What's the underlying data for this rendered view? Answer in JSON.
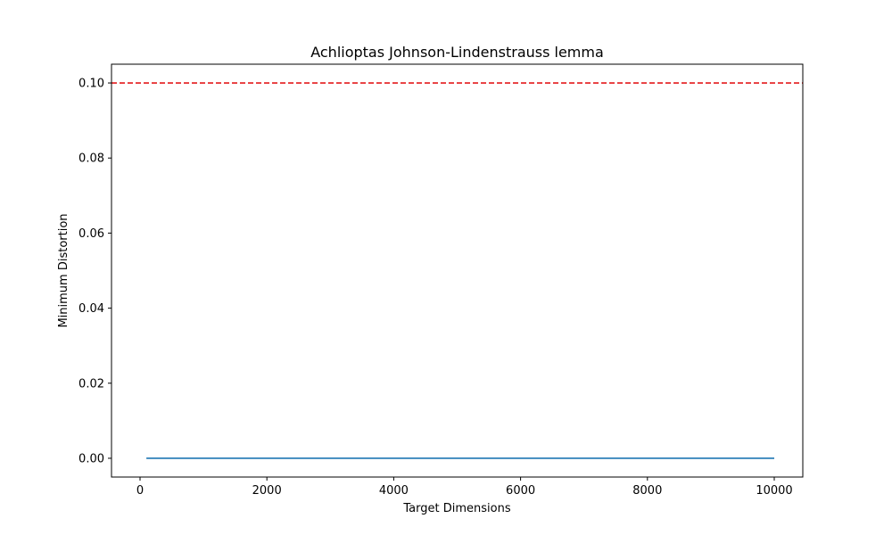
{
  "chart_data": {
    "type": "line",
    "title": "Achlioptas Johnson-Lindenstrauss lemma",
    "xlabel": "Target Dimensions",
    "ylabel": "Minimum Distortion",
    "xlim": [
      -450,
      10450
    ],
    "ylim": [
      -0.005,
      0.105
    ],
    "xticks": [
      0,
      2000,
      4000,
      6000,
      8000,
      10000
    ],
    "xtick_labels": [
      "0",
      "2000",
      "4000",
      "6000",
      "8000",
      "10000"
    ],
    "yticks": [
      0.0,
      0.02,
      0.04,
      0.06,
      0.08,
      0.1
    ],
    "ytick_labels": [
      "0.00",
      "0.02",
      "0.04",
      "0.06",
      "0.08",
      "0.10"
    ],
    "grid": false,
    "series": [
      {
        "color": "#1f77b4",
        "style": "solid",
        "x": [
          100,
          10000
        ],
        "y": [
          0.0,
          0.0
        ]
      }
    ],
    "reference_lines": [
      {
        "orientation": "horizontal",
        "y": 0.1,
        "color": "#e41a1c",
        "style": "dashed"
      }
    ]
  }
}
